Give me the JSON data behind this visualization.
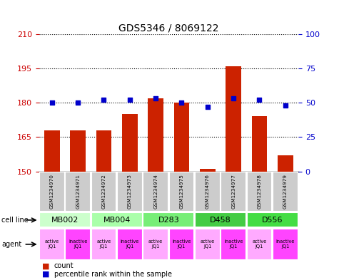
{
  "title": "GDS5346 / 8069122",
  "samples": [
    "GSM1234970",
    "GSM1234971",
    "GSM1234972",
    "GSM1234973",
    "GSM1234974",
    "GSM1234975",
    "GSM1234976",
    "GSM1234977",
    "GSM1234978",
    "GSM1234979"
  ],
  "counts": [
    168,
    168,
    168,
    175,
    182,
    180,
    151,
    196,
    174,
    157
  ],
  "percentile_ranks": [
    50,
    50,
    52,
    52,
    53,
    50,
    47,
    53,
    52,
    48
  ],
  "left_ylim": [
    150,
    210
  ],
  "left_yticks": [
    150,
    165,
    180,
    195,
    210
  ],
  "right_ylim": [
    0,
    100
  ],
  "right_yticks": [
    0,
    25,
    50,
    75,
    100
  ],
  "cell_lines": [
    {
      "label": "MB002",
      "span": [
        0,
        2
      ],
      "color": "#ccffcc"
    },
    {
      "label": "MB004",
      "span": [
        2,
        4
      ],
      "color": "#aaffaa"
    },
    {
      "label": "D283",
      "span": [
        4,
        6
      ],
      "color": "#77ee77"
    },
    {
      "label": "D458",
      "span": [
        6,
        8
      ],
      "color": "#44cc44"
    },
    {
      "label": "D556",
      "span": [
        8,
        10
      ],
      "color": "#44dd44"
    }
  ],
  "agent_colors": [
    "#ffaaff",
    "#ff44ff",
    "#ffaaff",
    "#ff44ff",
    "#ffaaff",
    "#ff44ff",
    "#ffaaff",
    "#ff44ff",
    "#ffaaff",
    "#ff44ff"
  ],
  "agent_labels": [
    "active\nJQ1",
    "inactive\nJQ1",
    "active\nJQ1",
    "inactive\nJQ1",
    "active\nJQ1",
    "inactive\nJQ1",
    "active\nJQ1",
    "inactive\nJQ1",
    "active\nJQ1",
    "inactive\nJQ1"
  ],
  "bar_color": "#cc2200",
  "dot_color": "#0000cc",
  "bar_width": 0.6,
  "sample_box_color": "#cccccc",
  "left_tick_color": "#cc0000",
  "right_tick_color": "#0000cc"
}
